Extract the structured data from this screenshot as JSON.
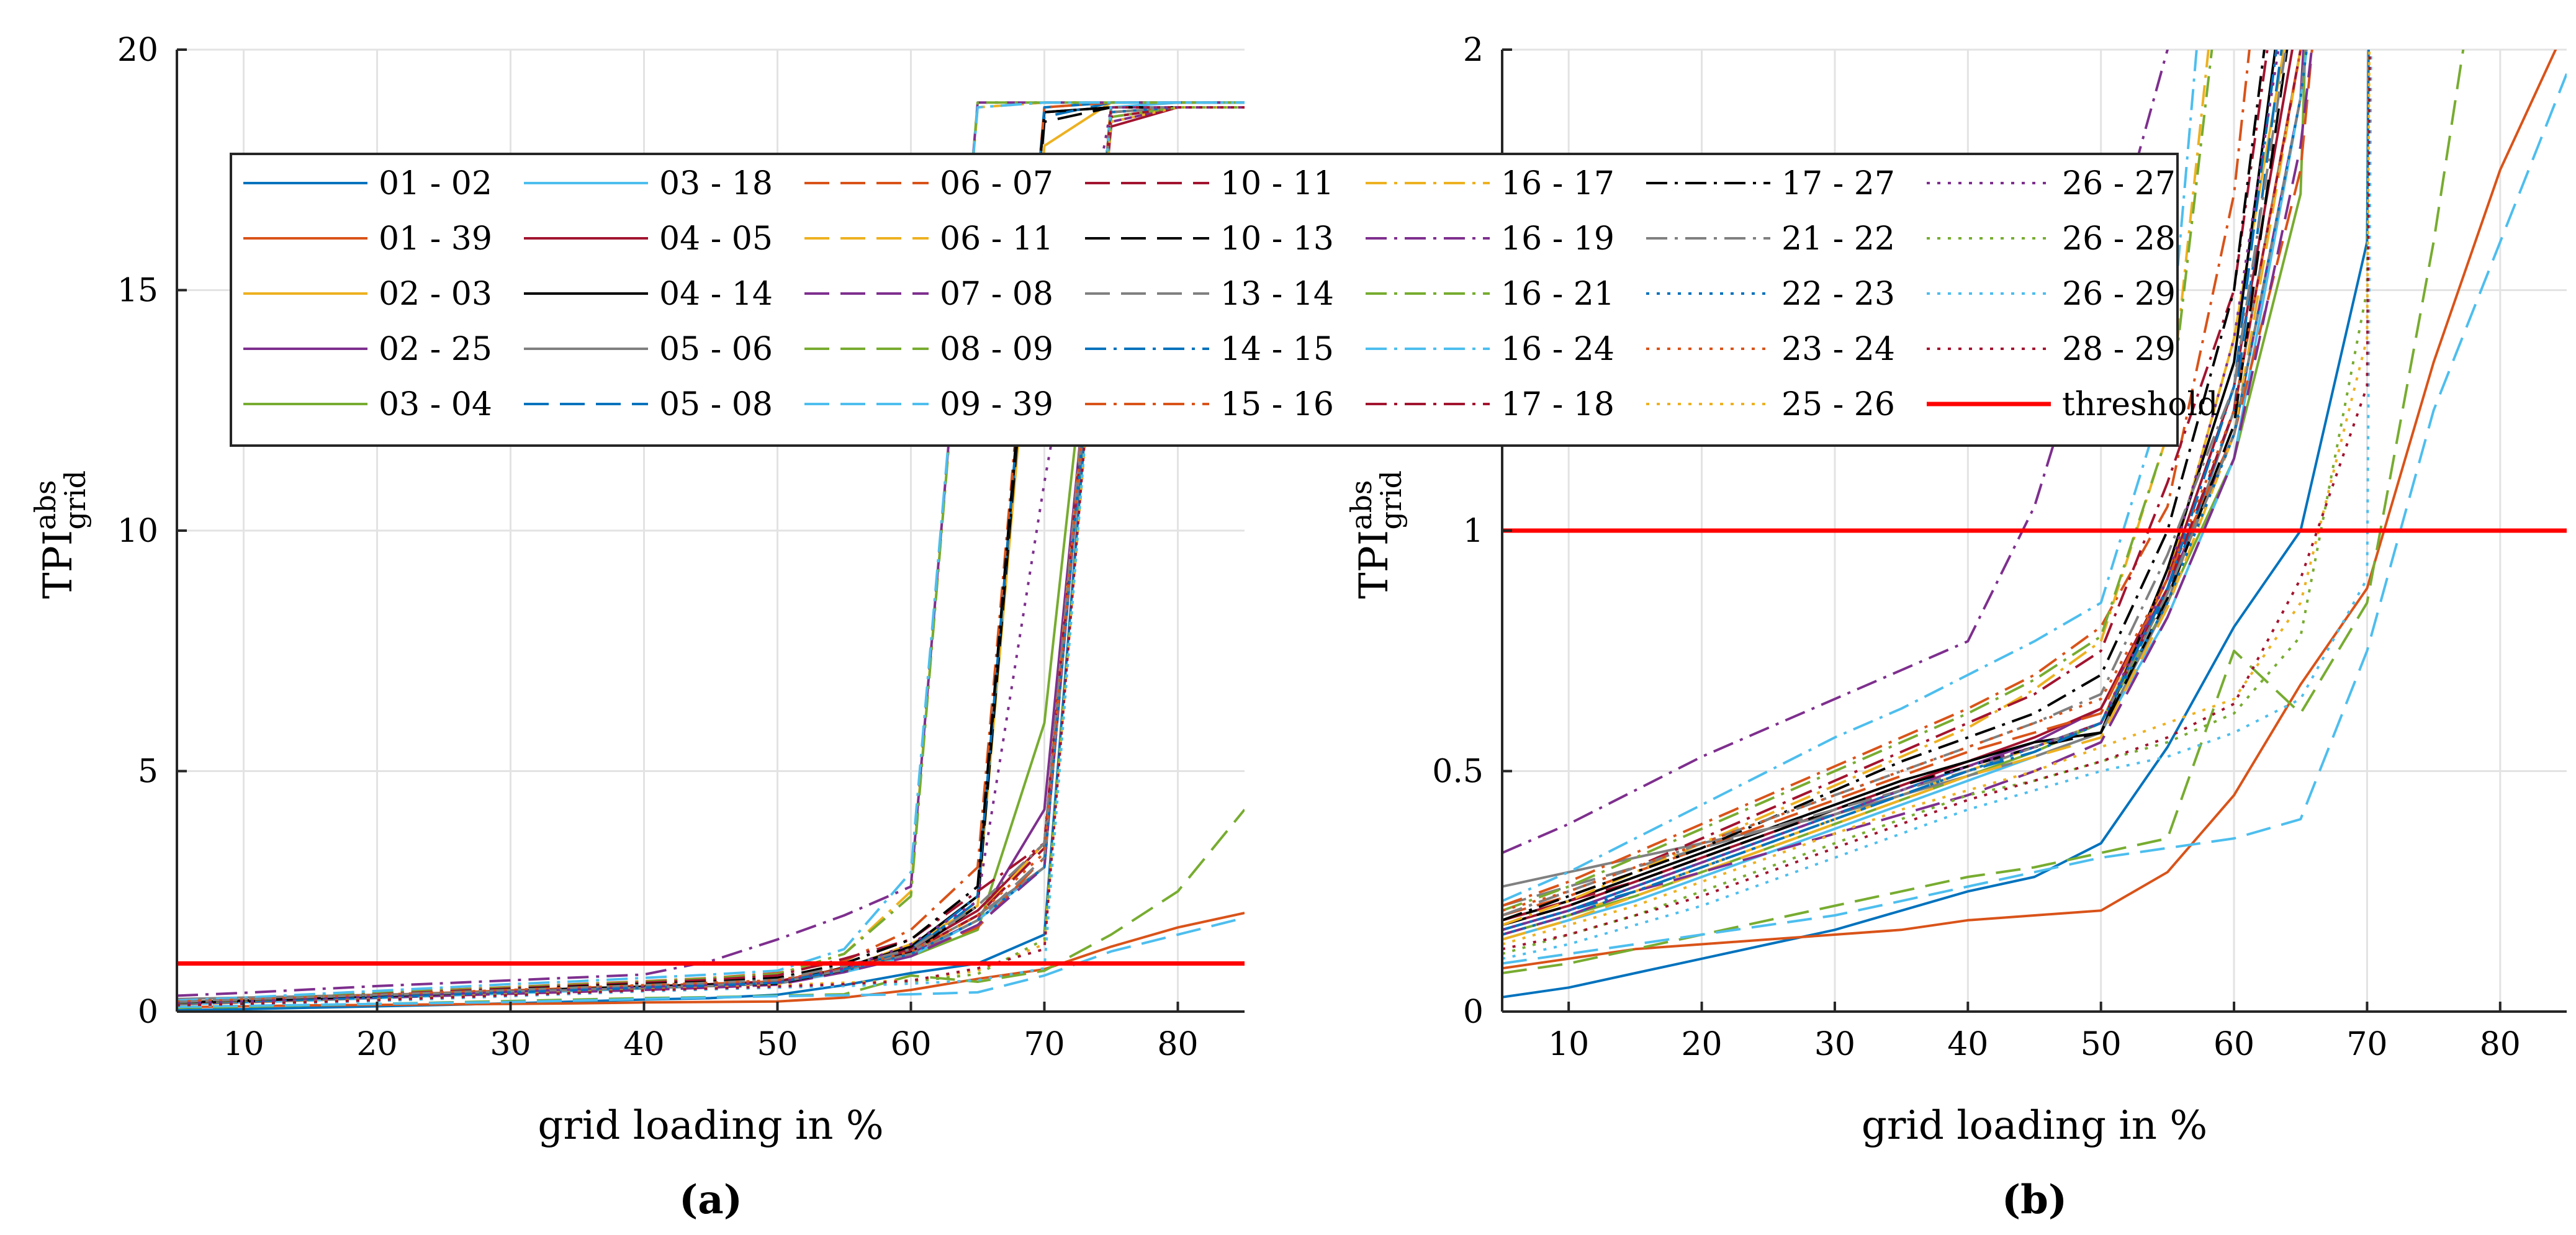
{
  "chart_data": [
    {
      "type": "line",
      "panel_label": "(a)",
      "xlabel": "grid loading in %",
      "ylabel": "TPI",
      "ylabel_sup": "abs",
      "ylabel_sub": "grid",
      "xlim": [
        5,
        85
      ],
      "ylim": [
        0,
        20
      ],
      "xticks": [
        10,
        20,
        30,
        40,
        50,
        60,
        70,
        80
      ],
      "yticks": [
        0,
        5,
        10,
        15,
        20
      ],
      "grid": true,
      "threshold": 1,
      "x": [
        5,
        10,
        15,
        20,
        25,
        30,
        35,
        40,
        45,
        50,
        55,
        60,
        65,
        70,
        75,
        80,
        85
      ]
    },
    {
      "type": "line",
      "panel_label": "(b)",
      "xlabel": "grid loading in %",
      "ylabel": "TPI",
      "ylabel_sup": "abs",
      "ylabel_sub": "grid",
      "xlim": [
        5,
        85
      ],
      "ylim": [
        0,
        2
      ],
      "xticks": [
        10,
        20,
        30,
        40,
        50,
        60,
        70,
        80
      ],
      "yticks": [
        0,
        0.5,
        1,
        1.5,
        2
      ],
      "grid": true,
      "threshold": 1,
      "x": [
        5,
        10,
        15,
        20,
        25,
        30,
        35,
        40,
        45,
        50,
        55,
        60,
        65,
        70,
        75,
        80,
        85
      ]
    }
  ],
  "series": [
    {
      "name": "01 - 02",
      "color": "#0072BD",
      "dash": "solid",
      "values": [
        0.03,
        0.05,
        0.08,
        0.11,
        0.14,
        0.17,
        0.21,
        0.25,
        0.28,
        0.35,
        0.55,
        0.8,
        1.0,
        1.6,
        18.8,
        18.8,
        18.8
      ]
    },
    {
      "name": "01 - 39",
      "color": "#D95319",
      "dash": "solid",
      "values": [
        0.09,
        0.11,
        0.13,
        0.14,
        0.15,
        0.16,
        0.17,
        0.19,
        0.2,
        0.21,
        0.29,
        0.45,
        0.68,
        0.88,
        1.35,
        1.75,
        2.05
      ]
    },
    {
      "name": "02 - 03",
      "color": "#EDB120",
      "dash": "solid",
      "values": [
        0.16,
        0.2,
        0.25,
        0.3,
        0.35,
        0.4,
        0.45,
        0.5,
        0.55,
        0.6,
        0.9,
        1.4,
        2.2,
        18.0,
        18.9,
        18.9,
        18.9
      ]
    },
    {
      "name": "02 - 25",
      "color": "#7E2F8E",
      "dash": "solid",
      "values": [
        0.17,
        0.21,
        0.26,
        0.31,
        0.36,
        0.41,
        0.46,
        0.51,
        0.56,
        0.63,
        0.88,
        1.2,
        1.9,
        4.2,
        18.5,
        18.8,
        18.8
      ]
    },
    {
      "name": "03 - 04",
      "color": "#77AC30",
      "dash": "solid",
      "values": [
        0.16,
        0.2,
        0.24,
        0.29,
        0.34,
        0.39,
        0.44,
        0.49,
        0.54,
        0.6,
        0.85,
        1.15,
        1.7,
        6.0,
        18.6,
        18.8,
        18.8
      ]
    },
    {
      "name": "03 - 18",
      "color": "#4DBEEE",
      "dash": "solid",
      "values": [
        0.15,
        0.19,
        0.23,
        0.28,
        0.33,
        0.38,
        0.43,
        0.48,
        0.53,
        0.58,
        0.82,
        1.15,
        1.9,
        3.0,
        18.8,
        18.9,
        18.9
      ]
    },
    {
      "name": "04 - 05",
      "color": "#A2142F",
      "dash": "solid",
      "values": [
        0.18,
        0.22,
        0.27,
        0.32,
        0.37,
        0.42,
        0.47,
        0.52,
        0.57,
        0.63,
        0.9,
        1.3,
        2.1,
        3.5,
        18.4,
        18.8,
        18.8
      ]
    },
    {
      "name": "04 - 14",
      "color": "#000000",
      "dash": "solid",
      "values": [
        0.19,
        0.23,
        0.28,
        0.33,
        0.38,
        0.43,
        0.48,
        0.52,
        0.56,
        0.58,
        0.92,
        1.35,
        2.4,
        18.7,
        18.8,
        18.8,
        18.8
      ]
    },
    {
      "name": "05 - 06",
      "color": "#808080",
      "dash": "solid",
      "values": [
        0.26,
        0.29,
        0.32,
        0.35,
        0.38,
        0.41,
        0.45,
        0.49,
        0.53,
        0.58,
        0.85,
        1.25,
        2.0,
        3.0,
        18.7,
        18.8,
        18.8
      ]
    },
    {
      "name": "05 - 08",
      "color": "#0072BD",
      "dash": "dashed",
      "values": [
        0.17,
        0.21,
        0.26,
        0.31,
        0.36,
        0.41,
        0.46,
        0.51,
        0.55,
        0.6,
        0.87,
        1.25,
        2.3,
        18.6,
        18.9,
        18.9,
        18.9
      ]
    },
    {
      "name": "06 - 07",
      "color": "#D95319",
      "dash": "dashed",
      "values": [
        0.2,
        0.24,
        0.29,
        0.34,
        0.39,
        0.44,
        0.49,
        0.54,
        0.58,
        0.62,
        0.9,
        1.2,
        1.75,
        3.2,
        18.7,
        18.8,
        18.8
      ]
    },
    {
      "name": "06 - 11",
      "color": "#EDB120",
      "dash": "dashed",
      "values": [
        0.15,
        0.19,
        0.24,
        0.29,
        0.34,
        0.39,
        0.44,
        0.49,
        0.53,
        0.57,
        0.84,
        1.2,
        2.0,
        3.5,
        18.9,
        18.9,
        18.9
      ]
    },
    {
      "name": "07 - 08",
      "color": "#7E2F8E",
      "dash": "dashed",
      "values": [
        0.16,
        0.2,
        0.25,
        0.29,
        0.33,
        0.37,
        0.41,
        0.45,
        0.5,
        0.56,
        0.82,
        1.15,
        1.8,
        3.0,
        18.8,
        18.8,
        18.8
      ]
    },
    {
      "name": "08 - 09",
      "color": "#77AC30",
      "dash": "dashed",
      "values": [
        0.08,
        0.1,
        0.13,
        0.16,
        0.19,
        0.22,
        0.25,
        0.28,
        0.3,
        0.33,
        0.36,
        0.75,
        0.62,
        0.85,
        1.6,
        2.5,
        4.2
      ]
    },
    {
      "name": "09 - 39",
      "color": "#4DBEEE",
      "dash": "dashed",
      "values": [
        0.1,
        0.12,
        0.14,
        0.16,
        0.18,
        0.2,
        0.23,
        0.26,
        0.29,
        0.32,
        0.34,
        0.36,
        0.4,
        0.75,
        1.25,
        1.6,
        1.95
      ]
    },
    {
      "name": "10 - 11",
      "color": "#A2142F",
      "dash": "dashed",
      "values": [
        0.19,
        0.23,
        0.27,
        0.32,
        0.37,
        0.42,
        0.47,
        0.51,
        0.55,
        0.6,
        0.88,
        1.25,
        2.0,
        3.4,
        18.6,
        18.8,
        18.8
      ]
    },
    {
      "name": "10 - 13",
      "color": "#000000",
      "dash": "dashed",
      "values": [
        0.18,
        0.22,
        0.27,
        0.32,
        0.37,
        0.42,
        0.47,
        0.51,
        0.55,
        0.58,
        0.86,
        1.22,
        2.2,
        18.5,
        18.8,
        18.8,
        18.8
      ]
    },
    {
      "name": "13 - 14",
      "color": "#808080",
      "dash": "dashed",
      "values": [
        0.22,
        0.26,
        0.3,
        0.34,
        0.38,
        0.42,
        0.46,
        0.5,
        0.55,
        0.6,
        0.87,
        1.2,
        1.9,
        3.2,
        18.7,
        18.8,
        18.8
      ]
    },
    {
      "name": "14 - 15",
      "color": "#0072BD",
      "dash": "dashdot",
      "values": [
        0.17,
        0.21,
        0.25,
        0.3,
        0.35,
        0.4,
        0.45,
        0.5,
        0.54,
        0.6,
        0.88,
        1.3,
        2.4,
        18.8,
        18.9,
        18.9,
        18.9
      ]
    },
    {
      "name": "15 - 16",
      "color": "#D95319",
      "dash": "dashdot",
      "values": [
        0.22,
        0.27,
        0.33,
        0.39,
        0.45,
        0.51,
        0.57,
        0.63,
        0.7,
        0.8,
        1.05,
        1.7,
        3.0,
        18.8,
        18.9,
        18.9,
        18.9
      ]
    },
    {
      "name": "16 - 17",
      "color": "#EDB120",
      "dash": "dashdot",
      "values": [
        0.18,
        0.23,
        0.29,
        0.35,
        0.41,
        0.47,
        0.53,
        0.59,
        0.67,
        0.77,
        1.2,
        2.5,
        18.8,
        18.9,
        18.9,
        18.9,
        18.9
      ]
    },
    {
      "name": "16 - 19",
      "color": "#7E2F8E",
      "dash": "dashdot",
      "values": [
        0.33,
        0.39,
        0.46,
        0.53,
        0.59,
        0.65,
        0.71,
        0.77,
        1.05,
        1.5,
        2.0,
        2.6,
        18.9,
        18.9,
        18.9,
        18.9,
        18.9
      ]
    },
    {
      "name": "16 - 21",
      "color": "#77AC30",
      "dash": "dashdot",
      "values": [
        0.21,
        0.26,
        0.32,
        0.38,
        0.44,
        0.5,
        0.56,
        0.62,
        0.69,
        0.78,
        1.2,
        2.4,
        18.9,
        18.9,
        18.9,
        18.9,
        18.9
      ]
    },
    {
      "name": "16 - 24",
      "color": "#4DBEEE",
      "dash": "dashdot",
      "values": [
        0.23,
        0.29,
        0.36,
        0.43,
        0.5,
        0.57,
        0.63,
        0.7,
        0.77,
        0.85,
        1.3,
        2.9,
        18.8,
        18.9,
        18.9,
        18.9,
        18.9
      ]
    },
    {
      "name": "17 - 18",
      "color": "#A2142F",
      "dash": "dashdot",
      "values": [
        0.2,
        0.25,
        0.3,
        0.36,
        0.42,
        0.48,
        0.54,
        0.6,
        0.66,
        0.75,
        1.1,
        1.5,
        2.5,
        3.5,
        18.8,
        18.8,
        18.8
      ]
    },
    {
      "name": "17 - 27",
      "color": "#000000",
      "dash": "dashdot",
      "values": [
        0.19,
        0.24,
        0.29,
        0.34,
        0.4,
        0.46,
        0.52,
        0.57,
        0.62,
        0.7,
        1.0,
        1.5,
        2.6,
        18.7,
        18.8,
        18.8,
        18.8
      ]
    },
    {
      "name": "21 - 22",
      "color": "#808080",
      "dash": "dashdot",
      "values": [
        0.2,
        0.25,
        0.3,
        0.35,
        0.4,
        0.45,
        0.5,
        0.55,
        0.6,
        0.66,
        0.95,
        1.3,
        2.2,
        3.5,
        18.8,
        18.8,
        18.8
      ]
    },
    {
      "name": "22 - 23",
      "color": "#0072BD",
      "dash": "dotted",
      "values": [
        0.16,
        0.2,
        0.25,
        0.3,
        0.35,
        0.4,
        0.45,
        0.5,
        0.55,
        0.6,
        0.85,
        1.2,
        1.9,
        3.0,
        18.7,
        18.8,
        18.8
      ]
    },
    {
      "name": "23 - 24",
      "color": "#D95319",
      "dash": "dotted",
      "values": [
        0.21,
        0.25,
        0.3,
        0.35,
        0.4,
        0.45,
        0.5,
        0.55,
        0.6,
        0.65,
        0.9,
        1.25,
        2.0,
        3.3,
        18.8,
        18.8,
        18.8
      ]
    },
    {
      "name": "25 - 26",
      "color": "#EDB120",
      "dash": "dotted",
      "values": [
        0.14,
        0.18,
        0.22,
        0.27,
        0.32,
        0.37,
        0.42,
        0.46,
        0.5,
        0.55,
        0.6,
        0.65,
        0.85,
        1.4,
        18.5,
        18.8,
        18.8
      ]
    },
    {
      "name": "26 - 27",
      "color": "#7E2F8E",
      "dash": "dotted",
      "values": [
        0.17,
        0.21,
        0.26,
        0.31,
        0.36,
        0.41,
        0.46,
        0.51,
        0.55,
        0.6,
        0.9,
        1.4,
        2.3,
        11.0,
        18.8,
        18.8,
        18.8
      ]
    },
    {
      "name": "26 - 28",
      "color": "#77AC30",
      "dash": "dotted",
      "values": [
        0.12,
        0.16,
        0.2,
        0.25,
        0.3,
        0.35,
        0.4,
        0.45,
        0.48,
        0.52,
        0.56,
        0.62,
        0.78,
        1.5,
        18.6,
        18.8,
        18.8
      ]
    },
    {
      "name": "26 - 29",
      "color": "#4DBEEE",
      "dash": "dotted",
      "values": [
        0.11,
        0.14,
        0.18,
        0.22,
        0.27,
        0.32,
        0.37,
        0.42,
        0.46,
        0.5,
        0.53,
        0.58,
        0.65,
        0.9,
        18.9,
        18.9,
        18.9
      ]
    },
    {
      "name": "28 - 29",
      "color": "#A2142F",
      "dash": "dotted",
      "values": [
        0.13,
        0.16,
        0.2,
        0.24,
        0.29,
        0.34,
        0.39,
        0.44,
        0.48,
        0.52,
        0.57,
        0.64,
        0.9,
        1.3,
        18.8,
        18.8,
        18.8
      ]
    },
    {
      "name": "threshold",
      "color": "#FF0000",
      "dash": "solid",
      "threshold": true,
      "values": [
        1,
        1,
        1,
        1,
        1,
        1,
        1,
        1,
        1,
        1,
        1,
        1,
        1,
        1,
        1,
        1,
        1
      ]
    }
  ]
}
